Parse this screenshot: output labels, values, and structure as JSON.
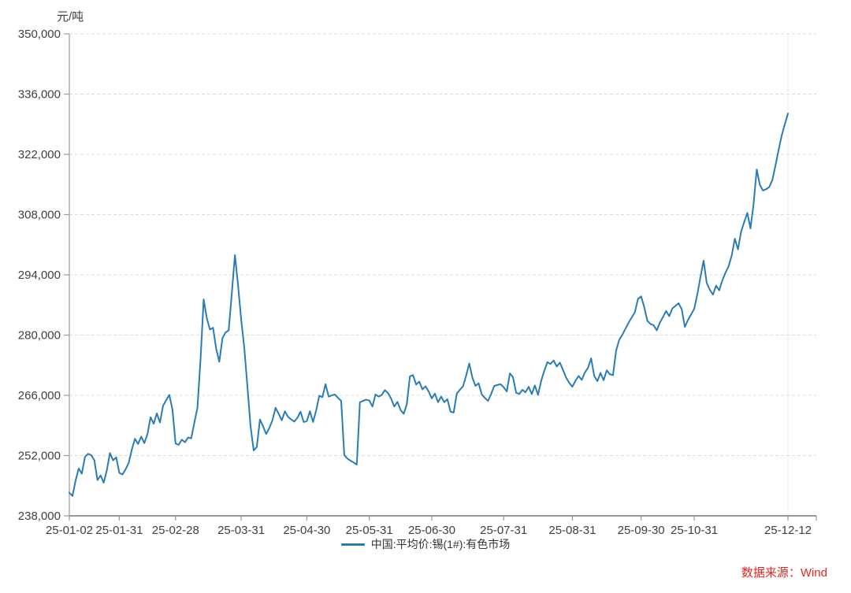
{
  "page": {
    "background": "#ffffff"
  },
  "chart": {
    "unit_label": "元/吨",
    "legend": {
      "label": "中国:平均价:锡(1#):有色市场",
      "marker_color": "#2b7cb5"
    },
    "source_note": "数据来源：Wind",
    "source_color": "#e5261f"
  },
  "chart_data": {
    "type": "line",
    "title": "",
    "ylabel": "元/吨",
    "xlabel": "",
    "series_name": "中国:平均价:锡(1#):有色市场",
    "line_color": "#2b7cb5",
    "axis_color": "#999999",
    "grid_color": "#dcdcdc",
    "tick_label_color": "#404040",
    "ylim": [
      238000,
      350000
    ],
    "y_tick_step": 14000,
    "grid": "horizontal-dashed",
    "legend_position": "bottom-center",
    "x_ticks": [
      "25-01-02",
      "25-01-31",
      "25-02-28",
      "25-03-31",
      "25-04-30",
      "25-05-31",
      "25-06-30",
      "25-07-31",
      "25-08-31",
      "25-09-30",
      "25-10-31",
      "25-12-12"
    ],
    "points": [
      [
        "25-01-02",
        243400
      ],
      [
        "25-01-03",
        242600
      ],
      [
        "25-01-06",
        246200
      ],
      [
        "25-01-08",
        249000
      ],
      [
        "25-01-09",
        247800
      ],
      [
        "25-01-10",
        251700
      ],
      [
        "25-01-13",
        252400
      ],
      [
        "25-01-15",
        252100
      ],
      [
        "25-01-16",
        250900
      ],
      [
        "25-01-17",
        246300
      ],
      [
        "25-01-20",
        247400
      ],
      [
        "25-01-21",
        245700
      ],
      [
        "25-01-22",
        248600
      ],
      [
        "25-01-23",
        252600
      ],
      [
        "25-01-24",
        250900
      ],
      [
        "25-01-27",
        251600
      ],
      [
        "25-01-31",
        248000
      ],
      [
        "25-02-05",
        247600
      ],
      [
        "25-02-06",
        248800
      ],
      [
        "25-02-07",
        250300
      ],
      [
        "25-02-10",
        253400
      ],
      [
        "25-02-11",
        255900
      ],
      [
        "25-02-12",
        254700
      ],
      [
        "25-02-13",
        256400
      ],
      [
        "25-02-14",
        254900
      ],
      [
        "25-02-17",
        257000
      ],
      [
        "25-02-18",
        260900
      ],
      [
        "25-02-19",
        259400
      ],
      [
        "25-02-20",
        261800
      ],
      [
        "25-02-21",
        259700
      ],
      [
        "25-02-24",
        263600
      ],
      [
        "25-02-25",
        264900
      ],
      [
        "25-02-26",
        266100
      ],
      [
        "25-02-27",
        262700
      ],
      [
        "25-02-28",
        254800
      ],
      [
        "25-03-03",
        254500
      ],
      [
        "25-03-04",
        255700
      ],
      [
        "25-03-05",
        255100
      ],
      [
        "25-03-06",
        256200
      ],
      [
        "25-03-07",
        256000
      ],
      [
        "25-03-10",
        259600
      ],
      [
        "25-03-11",
        263100
      ],
      [
        "25-03-12",
        274500
      ],
      [
        "25-03-13",
        288300
      ],
      [
        "25-03-14",
        283900
      ],
      [
        "25-03-17",
        281300
      ],
      [
        "25-03-18",
        281700
      ],
      [
        "25-03-19",
        276800
      ],
      [
        "25-03-20",
        273800
      ],
      [
        "25-03-21",
        279300
      ],
      [
        "25-03-24",
        280600
      ],
      [
        "25-03-25",
        281100
      ],
      [
        "25-03-26",
        289700
      ],
      [
        "25-03-27",
        298600
      ],
      [
        "25-03-28",
        291600
      ],
      [
        "25-03-31",
        283600
      ],
      [
        "25-04-01",
        277000
      ],
      [
        "25-04-02",
        268000
      ],
      [
        "25-04-03",
        258800
      ],
      [
        "25-04-07",
        253200
      ],
      [
        "25-04-08",
        254000
      ],
      [
        "25-04-09",
        260400
      ],
      [
        "25-04-10",
        258800
      ],
      [
        "25-04-11",
        257000
      ],
      [
        "25-04-14",
        258400
      ],
      [
        "25-04-15",
        260200
      ],
      [
        "25-04-16",
        263100
      ],
      [
        "25-04-17",
        261700
      ],
      [
        "25-04-18",
        260200
      ],
      [
        "25-04-21",
        262300
      ],
      [
        "25-04-22",
        261000
      ],
      [
        "25-04-23",
        260400
      ],
      [
        "25-04-24",
        259900
      ],
      [
        "25-04-25",
        260800
      ],
      [
        "25-04-28",
        262200
      ],
      [
        "25-04-29",
        259800
      ],
      [
        "25-04-30",
        260000
      ],
      [
        "25-05-06",
        262300
      ],
      [
        "25-05-07",
        259800
      ],
      [
        "25-05-08",
        262500
      ],
      [
        "25-05-09",
        265900
      ],
      [
        "25-05-12",
        265600
      ],
      [
        "25-05-13",
        268600
      ],
      [
        "25-05-14",
        265700
      ],
      [
        "25-05-15",
        266000
      ],
      [
        "25-05-16",
        266200
      ],
      [
        "25-05-19",
        265400
      ],
      [
        "25-05-20",
        264700
      ],
      [
        "25-05-21",
        252100
      ],
      [
        "25-05-22",
        251300
      ],
      [
        "25-05-23",
        250800
      ],
      [
        "25-05-26",
        250400
      ],
      [
        "25-05-27",
        249900
      ],
      [
        "25-05-28",
        264400
      ],
      [
        "25-05-29",
        264700
      ],
      [
        "25-05-30",
        265000
      ],
      [
        "25-05-31",
        264800
      ],
      [
        "25-06-03",
        263400
      ],
      [
        "25-06-04",
        266200
      ],
      [
        "25-06-05",
        265700
      ],
      [
        "25-06-06",
        266100
      ],
      [
        "25-06-09",
        267200
      ],
      [
        "25-06-10",
        266500
      ],
      [
        "25-06-11",
        265200
      ],
      [
        "25-06-12",
        263400
      ],
      [
        "25-06-13",
        264500
      ],
      [
        "25-06-16",
        262600
      ],
      [
        "25-06-17",
        261700
      ],
      [
        "25-06-18",
        263900
      ],
      [
        "25-06-19",
        270400
      ],
      [
        "25-06-20",
        270700
      ],
      [
        "25-06-23",
        268500
      ],
      [
        "25-06-24",
        269200
      ],
      [
        "25-06-25",
        267400
      ],
      [
        "25-06-26",
        268100
      ],
      [
        "25-06-27",
        266900
      ],
      [
        "25-06-30",
        265300
      ],
      [
        "25-07-01",
        266400
      ],
      [
        "25-07-02",
        264400
      ],
      [
        "25-07-03",
        265700
      ],
      [
        "25-07-04",
        264400
      ],
      [
        "25-07-07",
        265100
      ],
      [
        "25-07-08",
        262200
      ],
      [
        "25-07-09",
        262000
      ],
      [
        "25-07-10",
        266400
      ],
      [
        "25-07-11",
        267300
      ],
      [
        "25-07-14",
        268100
      ],
      [
        "25-07-15",
        270600
      ],
      [
        "25-07-16",
        273400
      ],
      [
        "25-07-17",
        270100
      ],
      [
        "25-07-18",
        268200
      ],
      [
        "25-07-21",
        268800
      ],
      [
        "25-07-22",
        266200
      ],
      [
        "25-07-23",
        265400
      ],
      [
        "25-07-24",
        264700
      ],
      [
        "25-07-25",
        266300
      ],
      [
        "25-07-28",
        268200
      ],
      [
        "25-07-29",
        268400
      ],
      [
        "25-07-30",
        268600
      ],
      [
        "25-07-31",
        267900
      ],
      [
        "25-08-01",
        266900
      ],
      [
        "25-08-04",
        271100
      ],
      [
        "25-08-05",
        270200
      ],
      [
        "25-08-06",
        266600
      ],
      [
        "25-08-07",
        266300
      ],
      [
        "25-08-08",
        267300
      ],
      [
        "25-08-11",
        266700
      ],
      [
        "25-08-12",
        268000
      ],
      [
        "25-08-13",
        266300
      ],
      [
        "25-08-14",
        268300
      ],
      [
        "25-08-15",
        266100
      ],
      [
        "25-08-18",
        269300
      ],
      [
        "25-08-19",
        271700
      ],
      [
        "25-08-20",
        273700
      ],
      [
        "25-08-21",
        273300
      ],
      [
        "25-08-22",
        274100
      ],
      [
        "25-08-25",
        272700
      ],
      [
        "25-08-26",
        273600
      ],
      [
        "25-08-27",
        271900
      ],
      [
        "25-08-28",
        270100
      ],
      [
        "25-08-29",
        268900
      ],
      [
        "25-08-31",
        268000
      ],
      [
        "25-09-01",
        269400
      ],
      [
        "25-09-02",
        270500
      ],
      [
        "25-09-03",
        269600
      ],
      [
        "25-09-04",
        271300
      ],
      [
        "25-09-05",
        272400
      ],
      [
        "25-09-08",
        274600
      ],
      [
        "25-09-09",
        270500
      ],
      [
        "25-09-10",
        269300
      ],
      [
        "25-09-11",
        271200
      ],
      [
        "25-09-12",
        269500
      ],
      [
        "25-09-15",
        271800
      ],
      [
        "25-09-16",
        270900
      ],
      [
        "25-09-17",
        270700
      ],
      [
        "25-09-18",
        276400
      ],
      [
        "25-09-19",
        278900
      ],
      [
        "25-09-22",
        280100
      ],
      [
        "25-09-23",
        281500
      ],
      [
        "25-09-24",
        282900
      ],
      [
        "25-09-25",
        284100
      ],
      [
        "25-09-26",
        285300
      ],
      [
        "25-09-29",
        288400
      ],
      [
        "25-09-30",
        289000
      ],
      [
        "25-10-09",
        286500
      ],
      [
        "25-10-10",
        283300
      ],
      [
        "25-10-13",
        282600
      ],
      [
        "25-10-14",
        282300
      ],
      [
        "25-10-15",
        281100
      ],
      [
        "25-10-16",
        282900
      ],
      [
        "25-10-17",
        284200
      ],
      [
        "25-10-20",
        285600
      ],
      [
        "25-10-21",
        284400
      ],
      [
        "25-10-22",
        286200
      ],
      [
        "25-10-23",
        286800
      ],
      [
        "25-10-24",
        287400
      ],
      [
        "25-10-27",
        286000
      ],
      [
        "25-10-28",
        281900
      ],
      [
        "25-10-29",
        283500
      ],
      [
        "25-10-30",
        284800
      ],
      [
        "25-10-31",
        286100
      ],
      [
        "25-11-03",
        289500
      ],
      [
        "25-11-04",
        293500
      ],
      [
        "25-11-05",
        297300
      ],
      [
        "25-11-06",
        292100
      ],
      [
        "25-11-07",
        290500
      ],
      [
        "25-11-10",
        289400
      ],
      [
        "25-11-11",
        291500
      ],
      [
        "25-11-12",
        290400
      ],
      [
        "25-11-13",
        292700
      ],
      [
        "25-11-14",
        294500
      ],
      [
        "25-11-17",
        296000
      ],
      [
        "25-11-18",
        298500
      ],
      [
        "25-11-19",
        302400
      ],
      [
        "25-11-20",
        299900
      ],
      [
        "25-11-21",
        304000
      ],
      [
        "25-11-24",
        306300
      ],
      [
        "25-11-25",
        308400
      ],
      [
        "25-11-26",
        304800
      ],
      [
        "25-11-27",
        310500
      ],
      [
        "25-11-28",
        318500
      ],
      [
        "25-12-01",
        314900
      ],
      [
        "25-12-02",
        313600
      ],
      [
        "25-12-03",
        313900
      ],
      [
        "25-12-04",
        314400
      ],
      [
        "25-12-05",
        316000
      ],
      [
        "25-12-08",
        319400
      ],
      [
        "25-12-09",
        323000
      ],
      [
        "25-12-10",
        326400
      ],
      [
        "25-12-11",
        329000
      ],
      [
        "25-12-12",
        331500
      ]
    ]
  }
}
